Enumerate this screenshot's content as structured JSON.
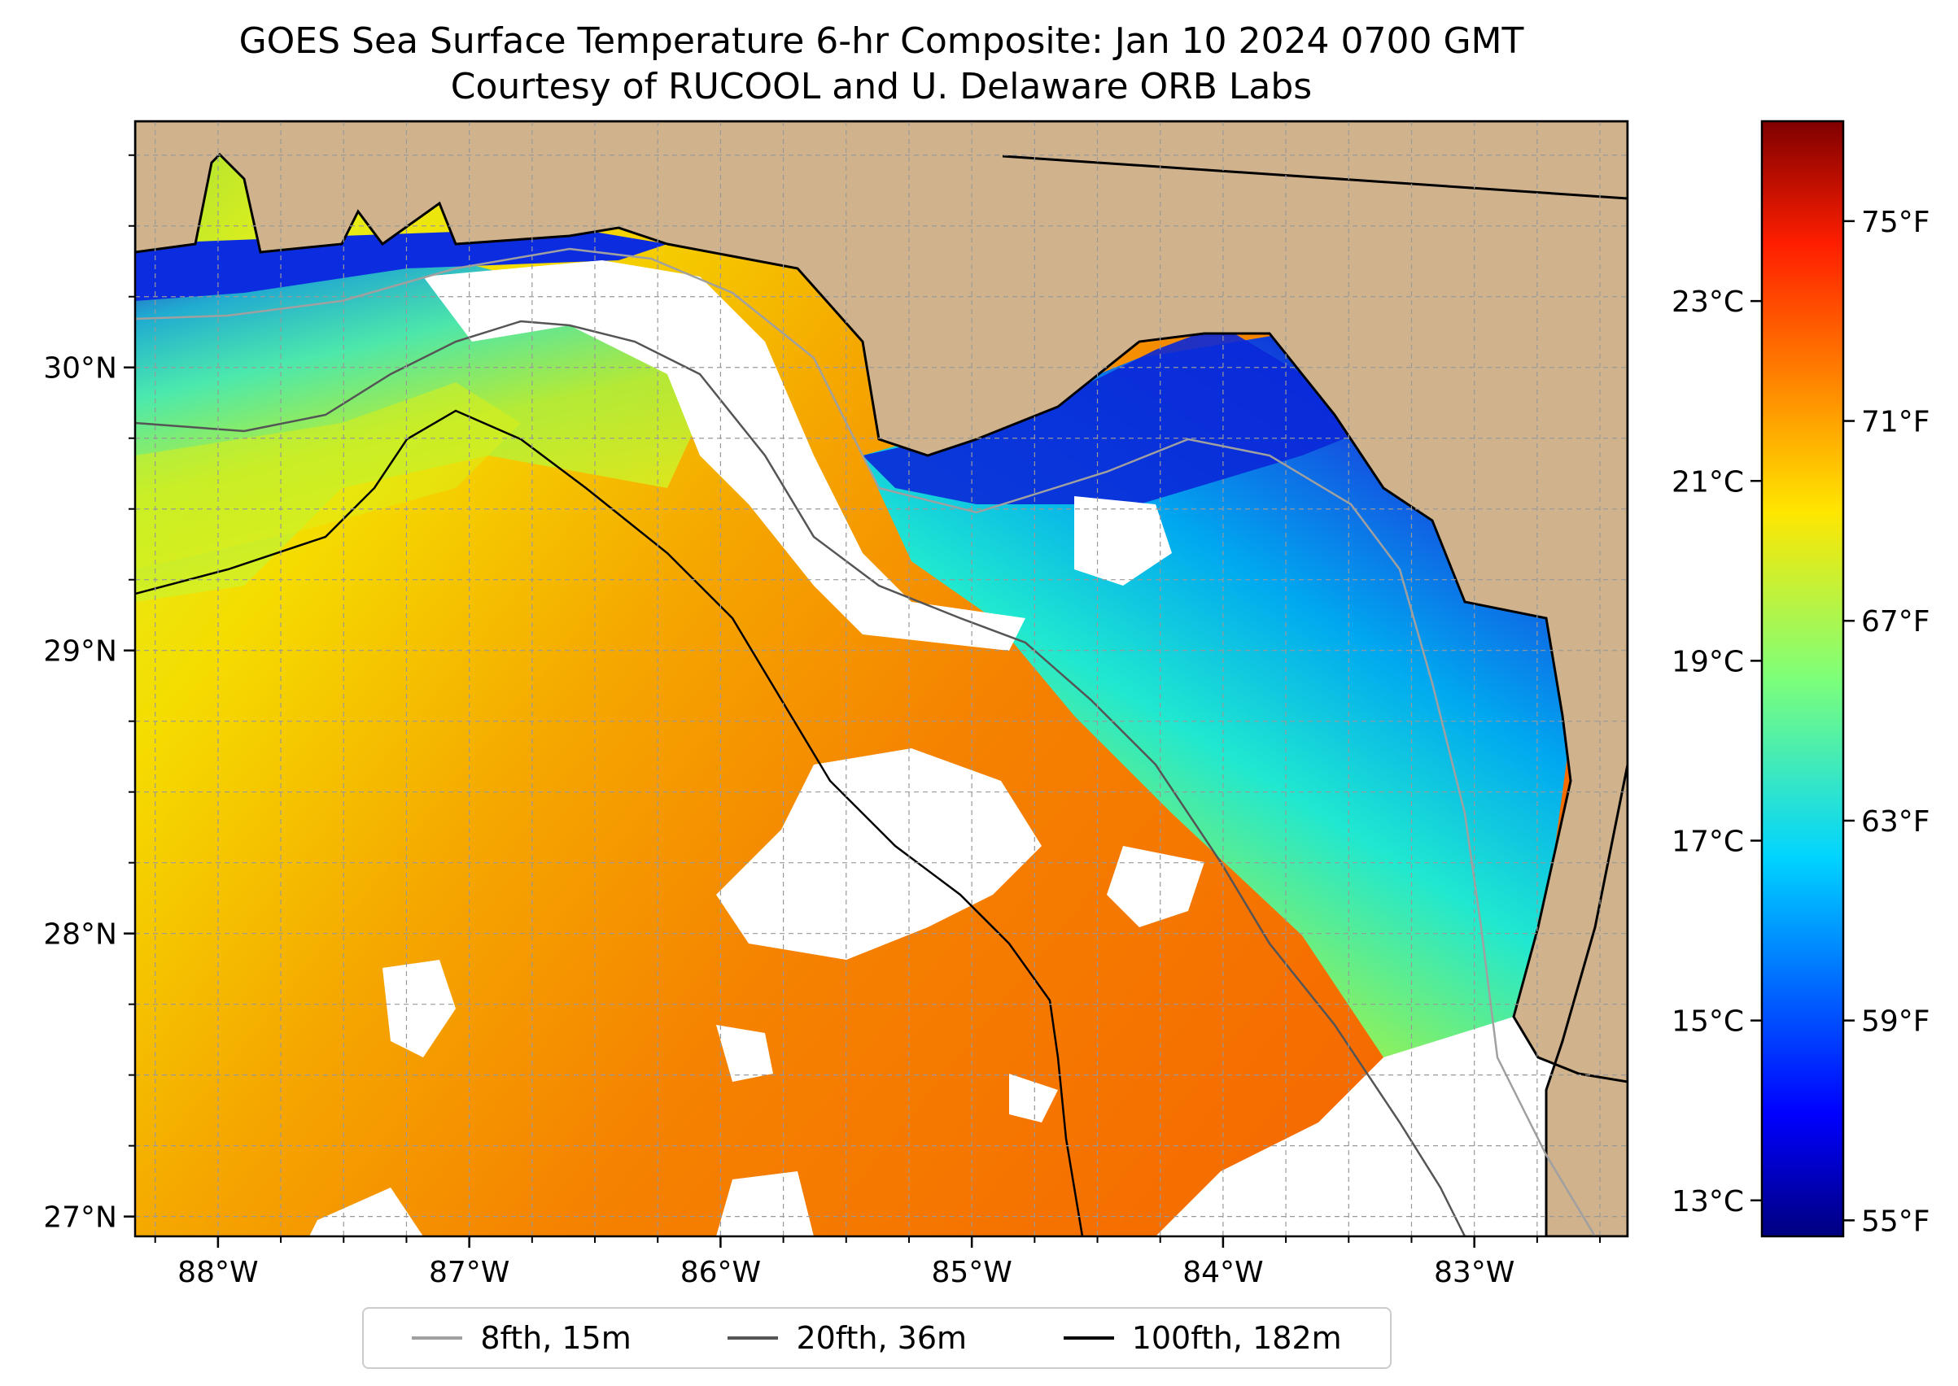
{
  "title": {
    "line1": "GOES Sea Surface Temperature 6-hr Composite: Jan 10 2024 0700 GMT",
    "line2": "Courtesy of RUCOOL and U. Delaware ORB Labs"
  },
  "map": {
    "lon_range": [
      -88.33,
      -82.39
    ],
    "lat_range": [
      26.93,
      30.87
    ],
    "lon_ticks": [
      {
        "value": -88,
        "label": "88°W"
      },
      {
        "value": -87,
        "label": "87°W"
      },
      {
        "value": -86,
        "label": "86°W"
      },
      {
        "value": -85,
        "label": "85°W"
      },
      {
        "value": -84,
        "label": "84°W"
      },
      {
        "value": -83,
        "label": "83°W"
      }
    ],
    "lat_ticks": [
      {
        "value": 27,
        "label": "27°N"
      },
      {
        "value": 28,
        "label": "28°N"
      },
      {
        "value": 29,
        "label": "29°N"
      },
      {
        "value": 30,
        "label": "30°N"
      }
    ],
    "minor_grid_step_deg": 0.25,
    "land_color": "#d0b38c",
    "no_data_color": "#ffffff"
  },
  "colorbar": {
    "min_c": 12.6,
    "max_c": 25.0,
    "colormap": "jet",
    "celsius_ticks": [
      {
        "value": 13,
        "label": "13°C"
      },
      {
        "value": 15,
        "label": "15°C"
      },
      {
        "value": 17,
        "label": "17°C"
      },
      {
        "value": 19,
        "label": "19°C"
      },
      {
        "value": 21,
        "label": "21°C"
      },
      {
        "value": 23,
        "label": "23°C"
      }
    ],
    "fahrenheit_ticks": [
      {
        "value": 55,
        "label": "55°F"
      },
      {
        "value": 59,
        "label": "59°F"
      },
      {
        "value": 63,
        "label": "63°F"
      },
      {
        "value": 67,
        "label": "67°F"
      },
      {
        "value": 71,
        "label": "71°F"
      },
      {
        "value": 75,
        "label": "75°F"
      }
    ]
  },
  "legend": {
    "items": [
      {
        "label": "8fth, 15m",
        "color": "#a0a0a0"
      },
      {
        "label": "20fth, 36m",
        "color": "#555555"
      },
      {
        "label": "100fth, 182m",
        "color": "#000000"
      }
    ]
  }
}
